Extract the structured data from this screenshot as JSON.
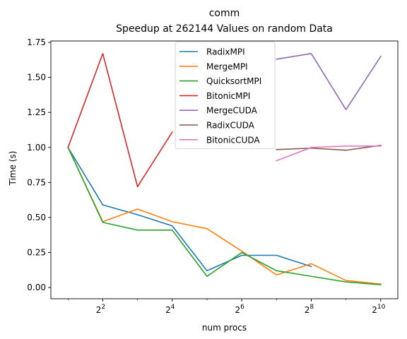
{
  "chart_data": {
    "type": "line",
    "title": "comm",
    "subtitle": "Speedup at 262144 Values on random Data",
    "xlabel": "num procs",
    "ylabel": "Time (s)",
    "x_scale": "log2",
    "x": [
      2,
      4,
      8,
      16,
      32,
      64,
      128,
      256,
      512,
      1024
    ],
    "x_ticks": [
      {
        "value": 4,
        "base": "2",
        "exp": "2"
      },
      {
        "value": 16,
        "base": "2",
        "exp": "4"
      },
      {
        "value": 64,
        "base": "2",
        "exp": "6"
      },
      {
        "value": 256,
        "base": "2",
        "exp": "8"
      },
      {
        "value": 1024,
        "base": "2",
        "exp": "10"
      }
    ],
    "y_ticks": [
      "0.00",
      "0.25",
      "0.50",
      "0.75",
      "1.00",
      "1.25",
      "1.50",
      "1.75"
    ],
    "xlim": [
      1.42,
      1440
    ],
    "ylim": [
      -0.08,
      1.76
    ],
    "grid": false,
    "legend_position": "top-center",
    "series": [
      {
        "name": "RadixMPI",
        "color": "#1f77b4",
        "values": [
          1.0,
          0.59,
          0.52,
          0.44,
          0.12,
          0.23,
          0.23,
          0.15,
          null,
          null
        ]
      },
      {
        "name": "MergeMPI",
        "color": "#ff7f0e",
        "values": [
          1.0,
          0.47,
          0.56,
          0.47,
          0.42,
          0.26,
          0.09,
          0.17,
          0.05,
          0.025
        ]
      },
      {
        "name": "QuicksortMPI",
        "color": "#2ca02c",
        "values": [
          1.0,
          0.465,
          0.41,
          0.41,
          0.08,
          0.25,
          0.12,
          0.08,
          0.04,
          0.02
        ]
      },
      {
        "name": "BitonicMPI",
        "color": "#d62728",
        "values": [
          1.0,
          1.67,
          0.72,
          1.11,
          null,
          null,
          null,
          null,
          null,
          null
        ]
      },
      {
        "name": "MergeCUDA",
        "color": "#9467bd",
        "values": [
          null,
          null,
          null,
          null,
          null,
          null,
          1.63,
          1.67,
          1.27,
          1.65
        ]
      },
      {
        "name": "RadixCUDA",
        "color": "#8c564b",
        "values": [
          null,
          null,
          null,
          null,
          null,
          null,
          0.985,
          0.995,
          0.98,
          1.015
        ]
      },
      {
        "name": "BitonicCUDA",
        "color": "#e377c2",
        "values": [
          null,
          null,
          null,
          null,
          null,
          null,
          0.905,
          1.0,
          1.01,
          1.01
        ]
      }
    ]
  }
}
